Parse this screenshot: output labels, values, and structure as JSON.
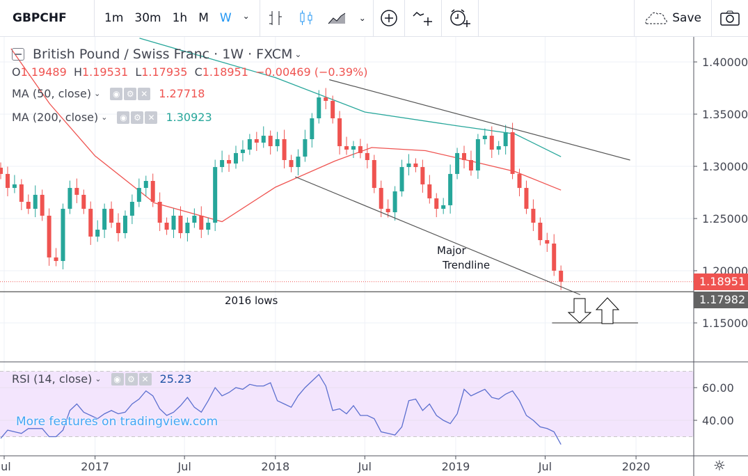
{
  "toolbar": {
    "symbol": "GBPCHF",
    "intervals": [
      "1m",
      "30m",
      "1h",
      "M",
      "W"
    ],
    "active_interval": "W",
    "save_label": "Save"
  },
  "legend": {
    "title": "British Pound / Swiss Franc · 1W · FXCM",
    "ohlc": {
      "o_label": "O",
      "o": "1.19489",
      "h_label": "H",
      "h": "1.19531",
      "l_label": "L",
      "l": "1.17935",
      "c_label": "C",
      "c": "1.18951",
      "change": "−0.00469 (−0.39%)"
    },
    "ma50": {
      "label": "MA (50, close)",
      "value": "1.27718"
    },
    "ma200": {
      "label": "MA (200, close)",
      "value": "1.30923"
    },
    "rsi": {
      "label": "RSI (14, close)",
      "value": "25.23"
    }
  },
  "watermark": "More features on tradingview.com",
  "annotations": {
    "trendline": "Major",
    "trendline2": "Trendline",
    "lows": "2016 lows"
  },
  "price_labels": {
    "last": "1.18951",
    "lows_line": "1.17982"
  },
  "colors": {
    "up": "#26a69a",
    "down": "#ef5350",
    "ma50": "#ef5350",
    "ma200": "#26a69a",
    "rsi": "#5b6fcf",
    "rsi_band": "#f3e5fd",
    "accent": "#2196f3"
  },
  "chart_data": {
    "type": "candlestick",
    "interval": "1W",
    "price_axis": {
      "ticks": [
        "1.40000",
        "1.35000",
        "1.30000",
        "1.25000",
        "1.20000",
        "1.15000"
      ],
      "range": [
        1.12,
        1.42
      ]
    },
    "time_axis": {
      "ticks": [
        {
          "label": "Jul",
          "date": "2016-07-01"
        },
        {
          "label": "2017",
          "date": "2017-01-01"
        },
        {
          "label": "Jul",
          "date": "2017-07-01"
        },
        {
          "label": "2018",
          "date": "2018-01-01"
        },
        {
          "label": "Jul",
          "date": "2018-07-01"
        },
        {
          "label": "2019",
          "date": "2019-01-01"
        },
        {
          "label": "Jul",
          "date": "2019-07-01"
        },
        {
          "label": "2020",
          "date": "2020-01-01"
        }
      ]
    },
    "dates": [
      "2016-06-24",
      "2016-07-08",
      "2016-07-22",
      "2016-08-05",
      "2016-08-19",
      "2016-09-02",
      "2016-09-16",
      "2016-09-30",
      "2016-10-14",
      "2016-10-28",
      "2016-11-11",
      "2016-11-25",
      "2016-12-09",
      "2016-12-23",
      "2017-01-06",
      "2017-01-20",
      "2017-02-03",
      "2017-02-17",
      "2017-03-03",
      "2017-03-17",
      "2017-03-31",
      "2017-04-14",
      "2017-04-28",
      "2017-05-12",
      "2017-05-26",
      "2017-06-09",
      "2017-06-23",
      "2017-07-07",
      "2017-07-21",
      "2017-08-04",
      "2017-08-18",
      "2017-09-01",
      "2017-09-15",
      "2017-09-29",
      "2017-10-13",
      "2017-10-27",
      "2017-11-10",
      "2017-11-24",
      "2017-12-08",
      "2017-12-22",
      "2018-01-05",
      "2018-01-19",
      "2018-02-02",
      "2018-02-16",
      "2018-03-02",
      "2018-03-16",
      "2018-03-30",
      "2018-04-13",
      "2018-04-27",
      "2018-05-11",
      "2018-05-25",
      "2018-06-08",
      "2018-06-22",
      "2018-07-06",
      "2018-07-20",
      "2018-08-03",
      "2018-08-17",
      "2018-08-31",
      "2018-09-14",
      "2018-09-28",
      "2018-10-12",
      "2018-10-26",
      "2018-11-09",
      "2018-11-23",
      "2018-12-07",
      "2018-12-21",
      "2019-01-04",
      "2019-01-18",
      "2019-02-01",
      "2019-02-15",
      "2019-03-01",
      "2019-03-15",
      "2019-03-29",
      "2019-04-12",
      "2019-04-26",
      "2019-05-10",
      "2019-05-24",
      "2019-06-07",
      "2019-06-21",
      "2019-07-05",
      "2019-07-19",
      "2019-08-02"
    ],
    "close": [
      1.2927,
      1.2793,
      1.2827,
      1.266,
      1.2593,
      1.2727,
      1.2527,
      1.2127,
      1.2093,
      1.2593,
      1.2793,
      1.2727,
      1.2593,
      1.2327,
      1.2393,
      1.2593,
      1.246,
      1.236,
      1.2527,
      1.266,
      1.2793,
      1.286,
      1.266,
      1.246,
      1.2393,
      1.2527,
      1.236,
      1.246,
      1.2527,
      1.2393,
      1.246,
      1.2993,
      1.306,
      1.3027,
      1.3127,
      1.316,
      1.326,
      1.3227,
      1.3293,
      1.3193,
      1.326,
      1.306,
      1.2993,
      1.3093,
      1.326,
      1.346,
      1.366,
      1.3627,
      1.346,
      1.3193,
      1.316,
      1.3193,
      1.3127,
      1.306,
      1.2793,
      1.2593,
      1.256,
      1.276,
      1.2993,
      1.3027,
      1.2993,
      1.2827,
      1.2693,
      1.2593,
      1.2627,
      1.2927,
      1.3127,
      1.306,
      1.296,
      1.326,
      1.3293,
      1.316,
      1.3193,
      1.3327,
      1.2927,
      1.2793,
      1.2593,
      1.246,
      1.2293,
      1.226,
      1.2,
      1.1895
    ],
    "ma50": [
      [
        "2016-07-15",
        1.4127
      ],
      [
        "2016-10-01",
        1.36
      ],
      [
        "2017-01-01",
        1.31
      ],
      [
        "2017-05-01",
        1.265
      ],
      [
        "2017-09-15",
        1.247
      ],
      [
        "2018-01-01",
        1.28
      ],
      [
        "2018-05-01",
        1.305
      ],
      [
        "2018-07-15",
        1.318
      ],
      [
        "2018-11-01",
        1.315
      ],
      [
        "2019-02-01",
        1.305
      ],
      [
        "2019-05-01",
        1.295
      ],
      [
        "2019-08-02",
        1.2772
      ]
    ],
    "ma200": [
      [
        "2017-04-01",
        1.4227
      ],
      [
        "2018-01-01",
        1.385
      ],
      [
        "2018-07-01",
        1.352
      ],
      [
        "2019-01-01",
        1.339
      ],
      [
        "2019-05-01",
        1.331
      ],
      [
        "2019-08-02",
        1.3092
      ]
    ],
    "rsi": {
      "range": [
        0,
        100
      ],
      "band": [
        30,
        70
      ],
      "ticks": [
        "60.00",
        "40.00"
      ],
      "values": [
        29,
        34,
        33,
        32,
        35,
        35,
        35,
        30,
        30,
        34,
        46,
        50,
        45,
        43,
        41,
        44,
        46,
        44,
        45,
        50,
        53,
        58,
        55,
        47,
        43,
        45,
        49,
        54,
        48,
        45,
        52,
        60,
        55,
        57,
        60,
        59,
        62,
        61,
        61,
        63,
        52,
        50,
        48,
        55,
        60,
        64,
        68,
        61,
        46,
        47,
        44,
        49,
        43,
        43,
        41,
        33,
        32,
        31,
        36,
        52,
        53,
        46,
        50,
        43,
        40,
        38,
        44,
        59,
        55,
        57,
        59,
        54,
        53,
        56,
        58,
        52,
        43,
        40,
        36,
        35,
        33,
        25.23
      ]
    },
    "drawings": [
      {
        "type": "trendline",
        "from": [
          "2018-04-20",
          1.383
        ],
        "to": [
          "2019-12-20",
          1.306
        ]
      },
      {
        "type": "trendline",
        "from": [
          "2018-02-10",
          1.29
        ],
        "to": [
          "2019-09-10",
          1.177
        ]
      },
      {
        "type": "horizontal",
        "price": 1.17982
      },
      {
        "type": "segment",
        "price": 1.15,
        "from": "2019-07-15",
        "to": "2020-01-05"
      }
    ]
  }
}
